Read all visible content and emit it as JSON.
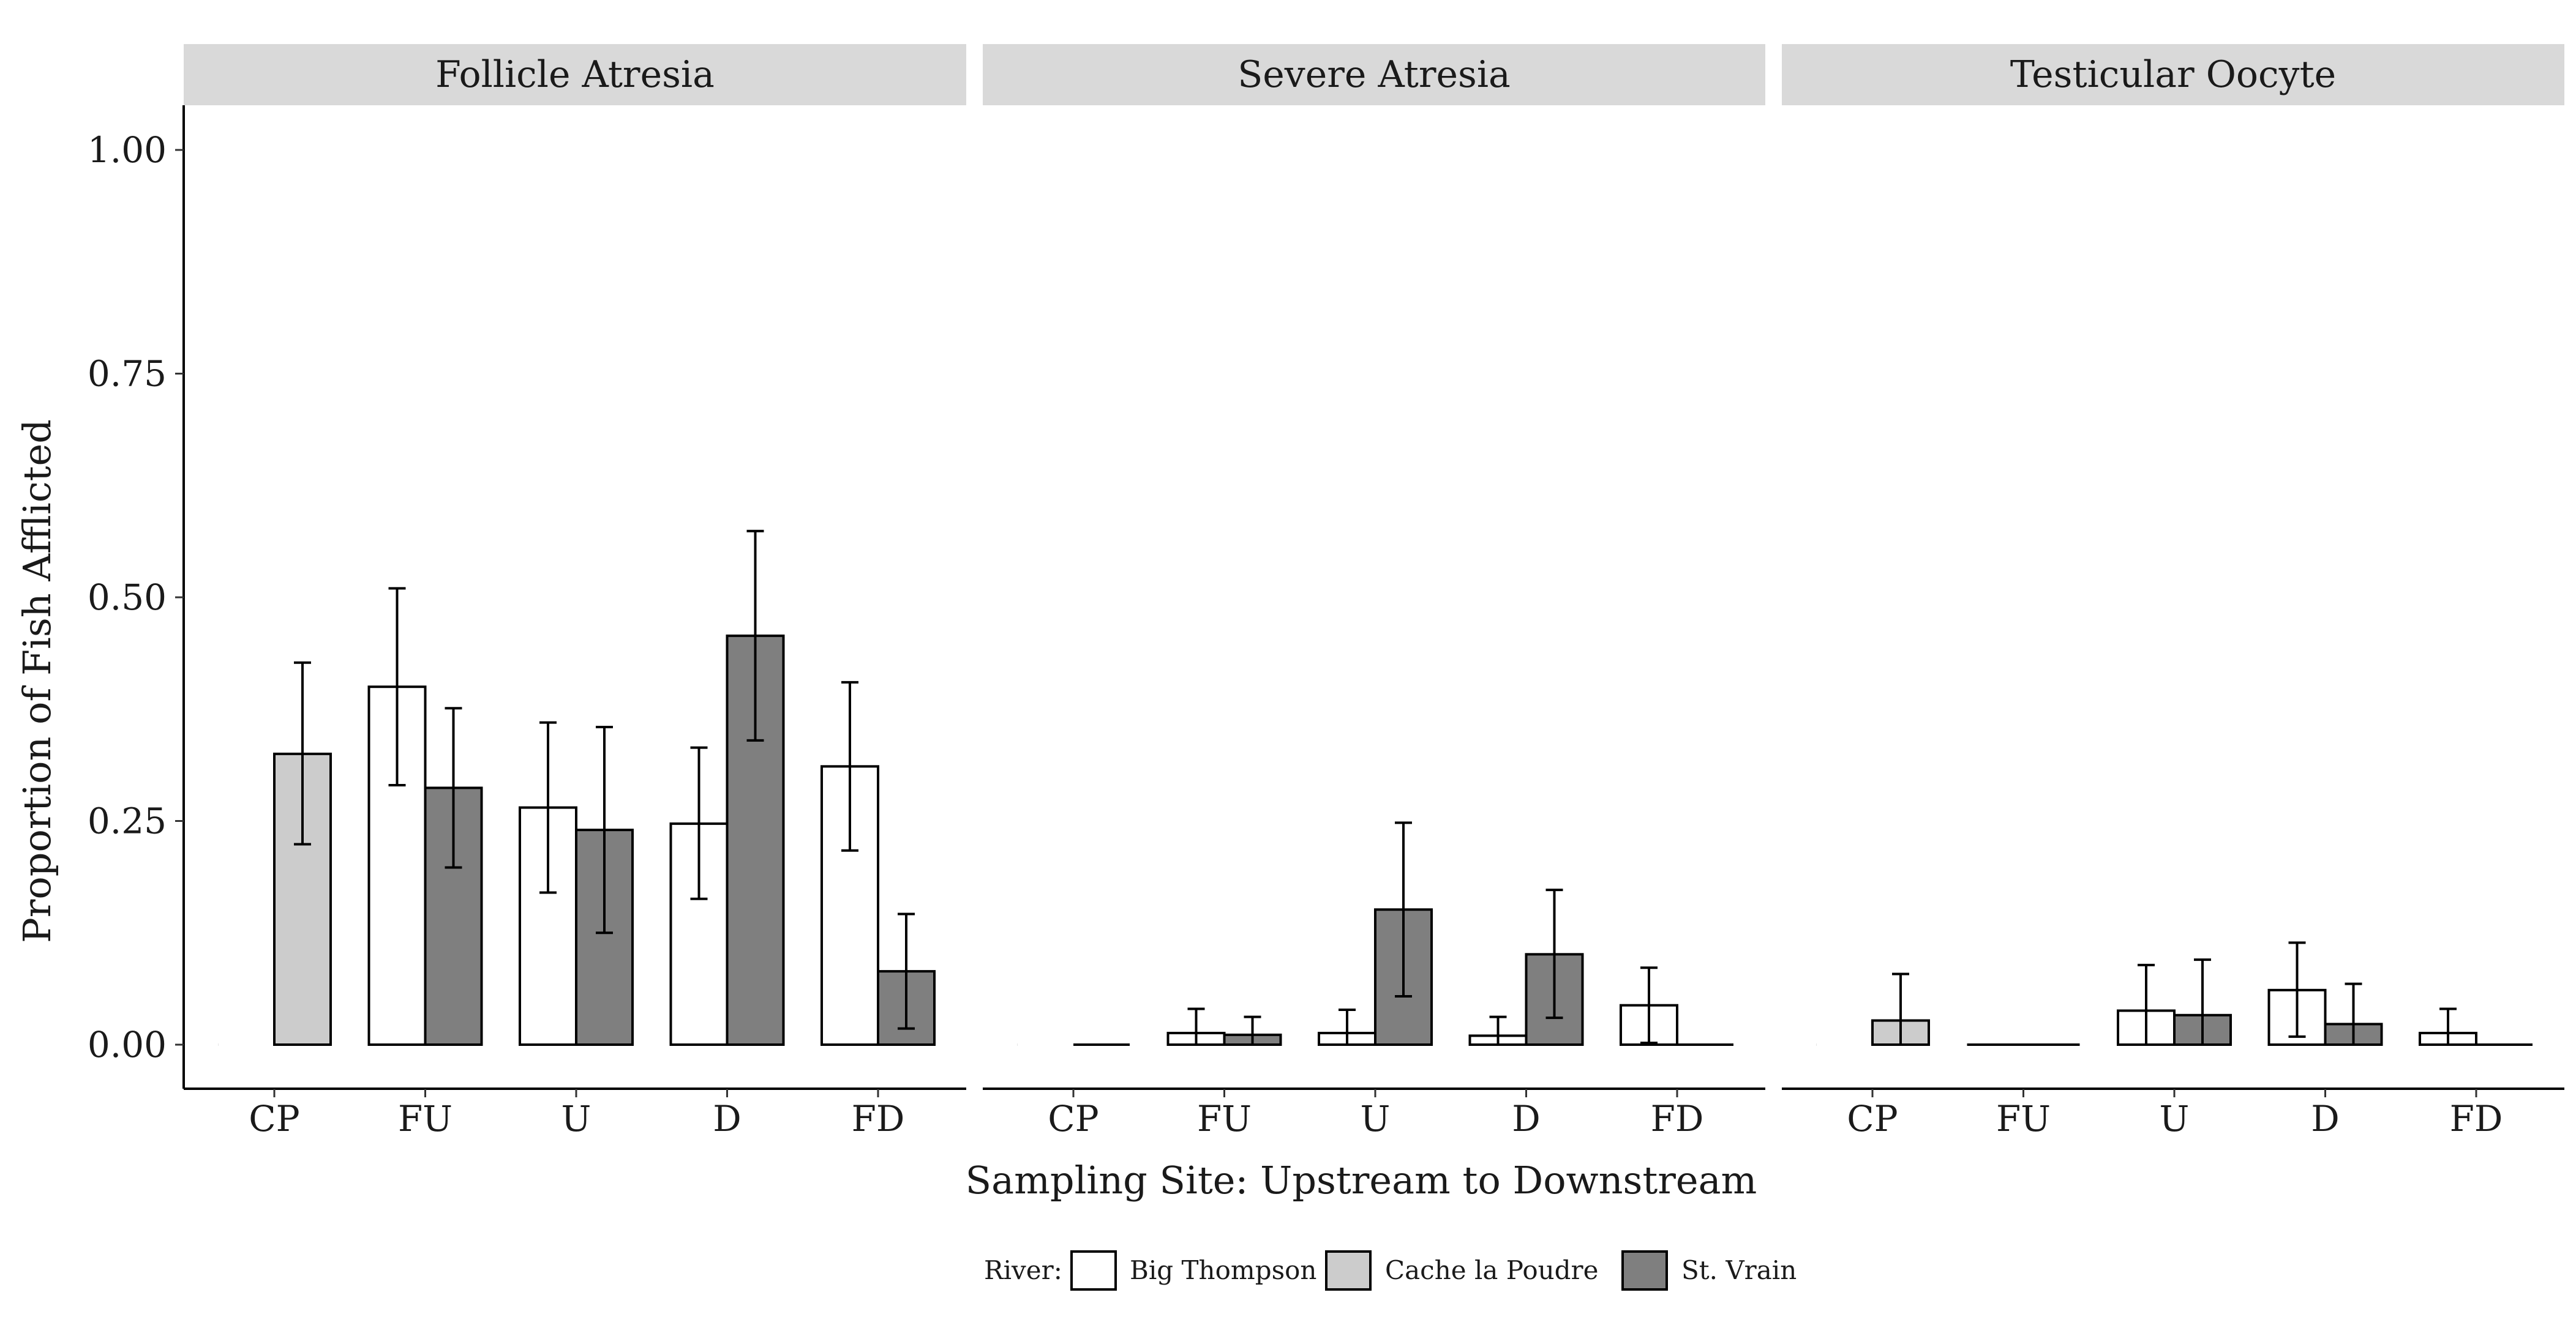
{
  "chart_data": {
    "type": "bar",
    "title": "",
    "xlabel": "Sampling Site: Upstream to Downstream",
    "ylabel": "Proportion of Fish Afflicted",
    "ylim": [
      -0.05,
      1.05
    ],
    "yticks": [
      "0.00",
      "0.25",
      "0.50",
      "0.75",
      "1.00"
    ],
    "categories": [
      "CP",
      "FU",
      "U",
      "D",
      "FD"
    ],
    "legend": {
      "title": "River:",
      "position": "bottom",
      "entries": [
        {
          "name": "Big Thompson",
          "color": "#ffffff"
        },
        {
          "name": "Cache la Poudre",
          "color": "#cccccc"
        },
        {
          "name": "St. Vrain",
          "color": "#7f7f7f"
        }
      ]
    },
    "facets": [
      {
        "title": "Follicle Atresia",
        "bars": [
          {
            "category": "CP",
            "series": "Cache la Poudre",
            "value": 0.325,
            "lower": 0.224,
            "upper": 0.427
          },
          {
            "category": "FU",
            "series": "Big Thompson",
            "value": 0.4,
            "lower": 0.29,
            "upper": 0.51
          },
          {
            "category": "FU",
            "series": "St. Vrain",
            "value": 0.287,
            "lower": 0.198,
            "upper": 0.376
          },
          {
            "category": "U",
            "series": "Big Thompson",
            "value": 0.265,
            "lower": 0.17,
            "upper": 0.36
          },
          {
            "category": "U",
            "series": "St. Vrain",
            "value": 0.24,
            "lower": 0.125,
            "upper": 0.355
          },
          {
            "category": "D",
            "series": "Big Thompson",
            "value": 0.247,
            "lower": 0.163,
            "upper": 0.332
          },
          {
            "category": "D",
            "series": "St. Vrain",
            "value": 0.457,
            "lower": 0.34,
            "upper": 0.574
          },
          {
            "category": "FD",
            "series": "Big Thompson",
            "value": 0.311,
            "lower": 0.217,
            "upper": 0.405
          },
          {
            "category": "FD",
            "series": "St. Vrain",
            "value": 0.082,
            "lower": 0.018,
            "upper": 0.146
          }
        ]
      },
      {
        "title": "Severe Atresia",
        "bars": [
          {
            "category": "CP",
            "series": "Cache la Poudre",
            "value": 0.0,
            "lower": null,
            "upper": null
          },
          {
            "category": "FU",
            "series": "Big Thompson",
            "value": 0.013,
            "lower": 0.0,
            "upper": 0.04
          },
          {
            "category": "FU",
            "series": "St. Vrain",
            "value": 0.011,
            "lower": 0.0,
            "upper": 0.031
          },
          {
            "category": "U",
            "series": "Big Thompson",
            "value": 0.013,
            "lower": 0.0,
            "upper": 0.039
          },
          {
            "category": "U",
            "series": "St. Vrain",
            "value": 0.151,
            "lower": 0.054,
            "upper": 0.248
          },
          {
            "category": "D",
            "series": "Big Thompson",
            "value": 0.01,
            "lower": 0.0,
            "upper": 0.031
          },
          {
            "category": "D",
            "series": "St. Vrain",
            "value": 0.101,
            "lower": 0.03,
            "upper": 0.173
          },
          {
            "category": "FD",
            "series": "Big Thompson",
            "value": 0.044,
            "lower": 0.002,
            "upper": 0.086
          },
          {
            "category": "FD",
            "series": "St. Vrain",
            "value": 0.0,
            "lower": null,
            "upper": null
          }
        ]
      },
      {
        "title": "Testicular Oocyte",
        "bars": [
          {
            "category": "CP",
            "series": "Cache la Poudre",
            "value": 0.027,
            "lower": 0.0,
            "upper": 0.079
          },
          {
            "category": "FU",
            "series": "Big Thompson",
            "value": 0.0,
            "lower": null,
            "upper": null
          },
          {
            "category": "FU",
            "series": "St. Vrain",
            "value": 0.0,
            "lower": null,
            "upper": null
          },
          {
            "category": "U",
            "series": "Big Thompson",
            "value": 0.038,
            "lower": 0.0,
            "upper": 0.089
          },
          {
            "category": "U",
            "series": "St. Vrain",
            "value": 0.033,
            "lower": 0.0,
            "upper": 0.095
          },
          {
            "category": "D",
            "series": "Big Thompson",
            "value": 0.061,
            "lower": 0.009,
            "upper": 0.114
          },
          {
            "category": "D",
            "series": "St. Vrain",
            "value": 0.023,
            "lower": 0.0,
            "upper": 0.068
          },
          {
            "category": "FD",
            "series": "Big Thompson",
            "value": 0.013,
            "lower": 0.0,
            "upper": 0.04
          },
          {
            "category": "FD",
            "series": "St. Vrain",
            "value": 0.0,
            "lower": null,
            "upper": null
          }
        ]
      }
    ]
  }
}
